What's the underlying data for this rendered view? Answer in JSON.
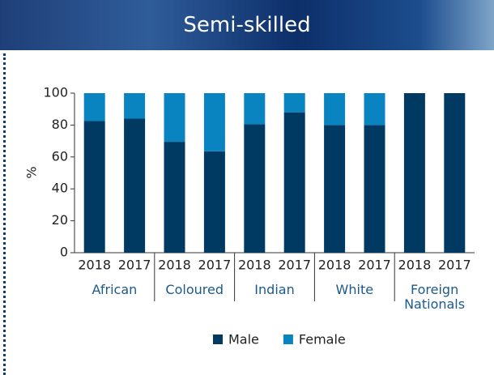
{
  "chart_data": {
    "type": "bar",
    "stacked": true,
    "title": "Semi-skilled",
    "y_label": "%",
    "categories": [
      "2018",
      "2017",
      "2018",
      "2017",
      "2018",
      "2017",
      "2018",
      "2017",
      "2018",
      "2017"
    ],
    "groups": [
      "African",
      "Coloured",
      "Indian",
      "White",
      "Foreign Nationals"
    ],
    "series": [
      {
        "name": "Male",
        "color": "#003a63",
        "values": [
          82.5,
          84,
          69.5,
          63.5,
          80.5,
          88,
          80,
          80,
          100,
          100
        ]
      },
      {
        "name": "Female",
        "color": "#0a84c1",
        "values": [
          17.5,
          16,
          30.5,
          36.5,
          19.5,
          12,
          20,
          20,
          0,
          0
        ]
      }
    ],
    "ylim": [
      0,
      100
    ],
    "yticks": [
      0,
      20,
      40,
      60,
      80,
      100
    ],
    "grid": false,
    "legend": "bottom"
  }
}
